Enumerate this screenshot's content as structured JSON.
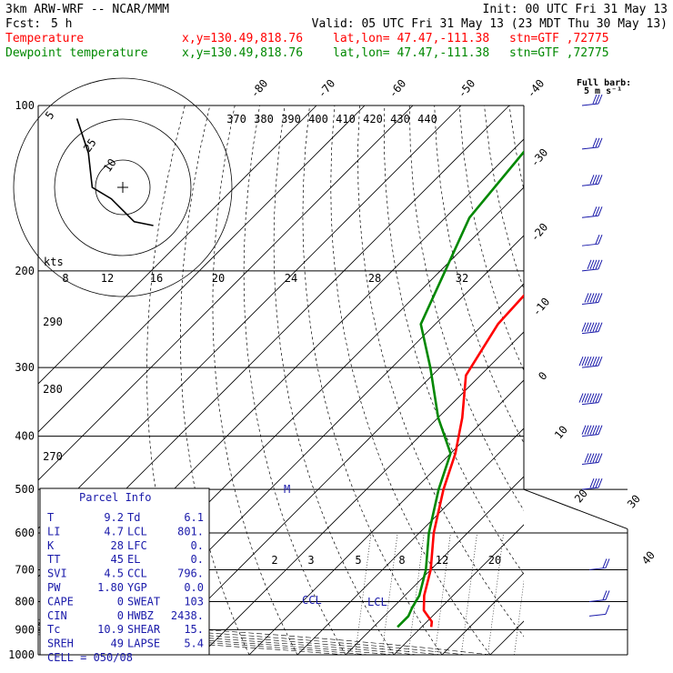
{
  "header": {
    "model": "3km ARW-WRF -- NCAR/MMM",
    "init": "Init: 00 UTC Fri 31 May 13",
    "fcst_label": "Fcst:",
    "fcst_value": "5 h",
    "valid": "Valid: 05 UTC Fri 31 May 13 (23 MDT Thu 30 May 13)",
    "temp_label": "Temperature",
    "dew_label": "Dewpoint temperature",
    "temp_xy": "x,y=130.49,818.76",
    "temp_latlon": "lat,lon= 47.47,-111.38",
    "temp_stn": "stn=GTF ,72775",
    "dew_xy": "x,y=130.49,818.76",
    "dew_latlon": "lat,lon= 47.47,-111.38",
    "dew_stn": "stn=GTF ,72775",
    "barb_title": "Full barb:",
    "barb_units": "5 m s⁻¹"
  },
  "colors": {
    "temperature": "#ff0000",
    "dewpoint": "#008800",
    "isobar": "#000000",
    "wind_barb": "#1a1aaa",
    "parcel_info": "#1a1aaa"
  },
  "chart_data": {
    "type": "line",
    "chart_kind": "skew-T log-P",
    "y_axis": {
      "label": "",
      "scale": "log",
      "range": [
        1000,
        100
      ],
      "ticks": [
        "100",
        "200",
        "300",
        "400",
        "500",
        "600",
        "700",
        "800",
        "900",
        "1000"
      ]
    },
    "top_temp_labels": [
      "-80",
      "-70",
      "-60",
      "-50",
      "-40"
    ],
    "right_temp_labels": [
      "-30",
      "-20",
      "-10",
      "0",
      "10",
      "20",
      "30",
      "40"
    ],
    "theta_e_labels": [
      "370",
      "380",
      "390",
      "400",
      "410",
      "420",
      "430",
      "440"
    ],
    "theta_labels": [
      "290",
      "280",
      "270"
    ],
    "mixing_ratio_labels": [
      "2",
      "3",
      "5",
      "8",
      "12",
      "20"
    ],
    "ll_axis_labels": [
      "8",
      "12",
      "16",
      "20",
      "24",
      "28",
      "32"
    ],
    "series": [
      {
        "name": "Temperature",
        "color": "#ff0000",
        "x": [
          12,
          11,
          7,
          4,
          0,
          -7,
          -14,
          -19,
          -25,
          -33,
          -37,
          -38,
          -38
        ],
        "y": [
          890,
          870,
          830,
          780,
          700,
          600,
          500,
          430,
          370,
          310,
          250,
          200,
          130
        ]
      },
      {
        "name": "Dewpoint temperature",
        "color": "#008800",
        "x": [
          5,
          5,
          4,
          3,
          -1,
          -8,
          -15,
          -20,
          -30,
          -42,
          -53,
          -59,
          -65,
          -69
        ],
        "y": [
          890,
          850,
          820,
          780,
          700,
          600,
          500,
          430,
          370,
          300,
          250,
          200,
          160,
          100
        ]
      }
    ],
    "markers": [
      {
        "label": "CCL",
        "p": 796
      },
      {
        "label": "LCL",
        "p": 801
      },
      {
        "label": "M",
        "p": 500
      }
    ],
    "wind_barbs": [
      {
        "p": 100,
        "speed": 15
      },
      {
        "p": 120,
        "speed": 15
      },
      {
        "p": 140,
        "speed": 20
      },
      {
        "p": 160,
        "speed": 15
      },
      {
        "p": 180,
        "speed": 10
      },
      {
        "p": 200,
        "speed": 25
      },
      {
        "p": 230,
        "speed": 30
      },
      {
        "p": 260,
        "speed": 35
      },
      {
        "p": 300,
        "speed": 40
      },
      {
        "p": 350,
        "speed": 40
      },
      {
        "p": 400,
        "speed": 35
      },
      {
        "p": 450,
        "speed": 30
      },
      {
        "p": 500,
        "speed": 20
      },
      {
        "p": 700,
        "speed": 10
      },
      {
        "p": 800,
        "speed": 10
      },
      {
        "p": 850,
        "speed": 5
      }
    ],
    "hodograph": {
      "rings": [
        "5",
        "10",
        "25"
      ],
      "points": [
        [
          -12,
          18
        ],
        [
          -9,
          9
        ],
        [
          -8,
          0
        ],
        [
          -3,
          -3
        ],
        [
          0,
          -6
        ],
        [
          3,
          -9
        ],
        [
          8,
          -10
        ]
      ]
    },
    "kts_label": "kts"
  },
  "parcel_info": {
    "title": "Parcel Info",
    "rows": [
      {
        "l1": "T",
        "v1": "9.2",
        "l2": "Td",
        "v2": "6.1"
      },
      {
        "l1": "LI",
        "v1": "4.7",
        "l2": "LCL",
        "v2": "801."
      },
      {
        "l1": "K",
        "v1": "28",
        "l2": "LFC",
        "v2": "0."
      },
      {
        "l1": "TT",
        "v1": "45",
        "l2": "EL",
        "v2": "0."
      },
      {
        "l1": "SVI",
        "v1": "4.5",
        "l2": "CCL",
        "v2": "796."
      },
      {
        "l1": "PW",
        "v1": "1.80",
        "l2": "YGP",
        "v2": "0.0"
      },
      {
        "l1": "CAPE",
        "v1": "0",
        "l2": "SWEAT",
        "v2": "103"
      },
      {
        "l1": "CIN",
        "v1": "0",
        "l2": "HWBZ",
        "v2": "2438."
      },
      {
        "l1": "Tc",
        "v1": "10.9",
        "l2": "SHEAR",
        "v2": "15."
      },
      {
        "l1": "SREH",
        "v1": "49",
        "l2": "LAPSE",
        "v2": "5.4"
      }
    ],
    "cell": "CELL = 050/08"
  }
}
